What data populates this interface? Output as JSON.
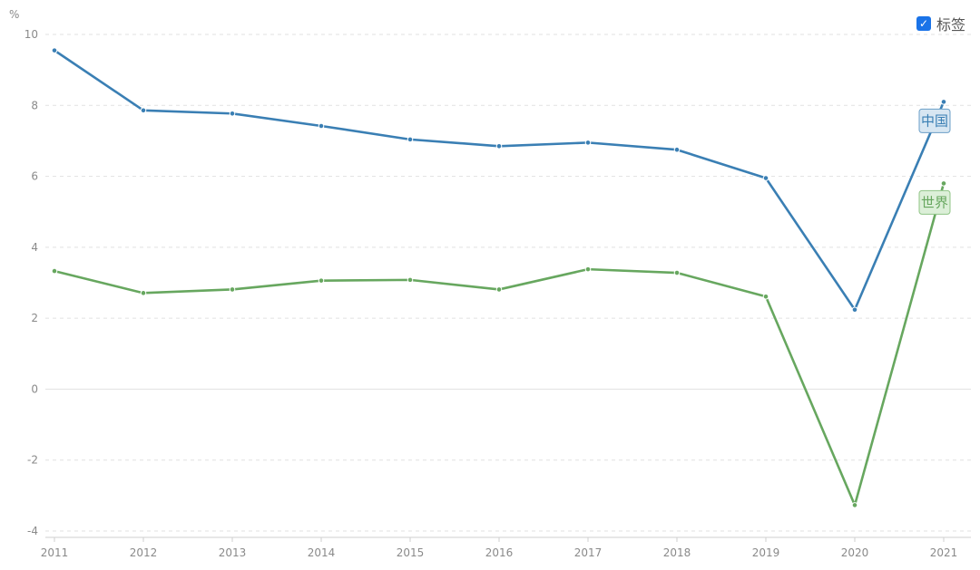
{
  "legend": {
    "checkbox_icon": "checkmark-icon",
    "label": "标签",
    "checked": true
  },
  "colors": {
    "china": "#3a7fb4",
    "world": "#67a75f",
    "grid": "#e1e1e1",
    "axis_text": "#8a8a8a"
  },
  "chart_data": {
    "type": "line",
    "unit_label": "%",
    "x": [
      "2011",
      "2012",
      "2013",
      "2014",
      "2015",
      "2016",
      "2017",
      "2018",
      "2019",
      "2020",
      "2021"
    ],
    "ylim": [
      -4,
      10
    ],
    "yticks": [
      -4,
      -2,
      0,
      2,
      4,
      6,
      8,
      10
    ],
    "grid": true,
    "legend_position": "top-right",
    "series": [
      {
        "name": "中国",
        "values": [
          9.55,
          7.86,
          7.77,
          7.42,
          7.04,
          6.85,
          6.95,
          6.75,
          5.95,
          2.24,
          8.1
        ]
      },
      {
        "name": "世界",
        "values": [
          3.33,
          2.71,
          2.81,
          3.06,
          3.08,
          2.81,
          3.38,
          3.28,
          2.61,
          -3.27,
          5.8
        ]
      }
    ]
  }
}
